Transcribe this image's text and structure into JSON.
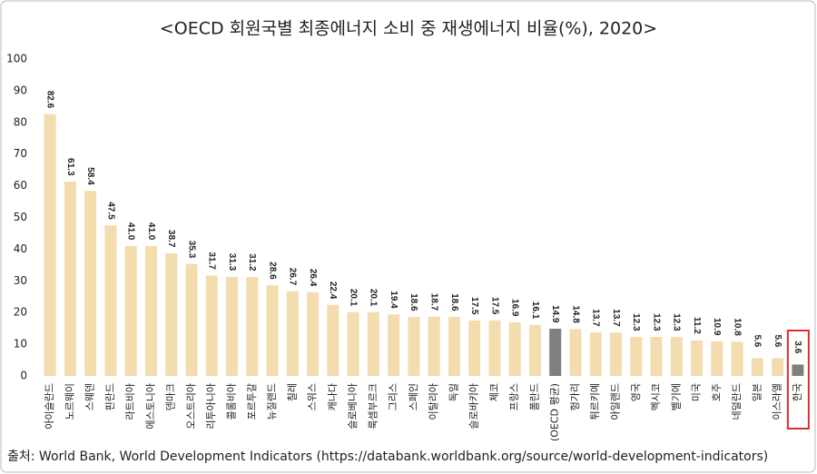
{
  "chart_data": {
    "type": "bar",
    "title": "<OECD 회원국별 최종에너지 소비 중 재생에너지 비율(%), 2020>",
    "source": "출처: World Bank, World Development Indicators (https://databank.worldbank.org/source/world-development-indicators)",
    "categories": [
      "아이슬란드",
      "노르웨이",
      "스웨덴",
      "핀란드",
      "라트비아",
      "에스토니아",
      "덴마크",
      "오스트리아",
      "리투아니아",
      "콜롬비아",
      "포르투갈",
      "뉴질랜드",
      "칠레",
      "스위스",
      "캐나다",
      "슬로베니아",
      "룩셈부르크",
      "그리스",
      "스페인",
      "이탈리아",
      "독일",
      "슬로바키아",
      "체코",
      "프랑스",
      "폴란드",
      "(OECD 평균)",
      "헝가리",
      "튀르키예",
      "아일랜드",
      "영국",
      "멕시코",
      "벨기에",
      "미국",
      "호주",
      "네덜란드",
      "일본",
      "이스라엘",
      "한국"
    ],
    "values": [
      82.6,
      61.3,
      58.4,
      47.5,
      41.0,
      41.0,
      38.7,
      35.3,
      31.7,
      31.3,
      31.2,
      28.6,
      26.7,
      26.4,
      22.4,
      20.1,
      20.1,
      19.4,
      18.6,
      18.7,
      18.6,
      17.5,
      17.5,
      16.9,
      16.1,
      14.9,
      14.8,
      13.7,
      13.7,
      12.3,
      12.3,
      12.3,
      11.2,
      10.9,
      10.8,
      5.6,
      5.6,
      3.6
    ],
    "value_labels": [
      "82.6",
      "61.3",
      "58.4",
      "47.5",
      "41.0",
      "41.0",
      "38.7",
      "35.3",
      "31.7",
      "31.3",
      "31.2",
      "28.6",
      "26.7",
      "26.4",
      "22.4",
      "20.1",
      "20.1",
      "19.4",
      "18.6",
      "18.7",
      "18.6",
      "17.5",
      "17.5",
      "16.9",
      "16.1",
      "14.9",
      "14.8",
      "13.7",
      "13.7",
      "12.3",
      "12.3",
      "12.3",
      "11.2",
      "10.9",
      "10.8",
      "5.6",
      "5.6",
      "3.6"
    ],
    "colors": [
      "#f3dcae",
      "#f3dcae",
      "#f3dcae",
      "#f3dcae",
      "#f3dcae",
      "#f3dcae",
      "#f3dcae",
      "#f3dcae",
      "#f3dcae",
      "#f3dcae",
      "#f3dcae",
      "#f3dcae",
      "#f3dcae",
      "#f3dcae",
      "#f3dcae",
      "#f3dcae",
      "#f3dcae",
      "#f3dcae",
      "#f3dcae",
      "#f3dcae",
      "#f3dcae",
      "#f3dcae",
      "#f3dcae",
      "#f3dcae",
      "#f3dcae",
      "#7f7f7f",
      "#f3dcae",
      "#f3dcae",
      "#f3dcae",
      "#f3dcae",
      "#f3dcae",
      "#f3dcae",
      "#f3dcae",
      "#f3dcae",
      "#f3dcae",
      "#f3dcae",
      "#f3dcae",
      "#7f7f7f"
    ],
    "ylim": [
      0,
      100
    ],
    "yticks": [
      0,
      10,
      20,
      30,
      40,
      50,
      60,
      70,
      80,
      90,
      100
    ],
    "grid": false
  }
}
